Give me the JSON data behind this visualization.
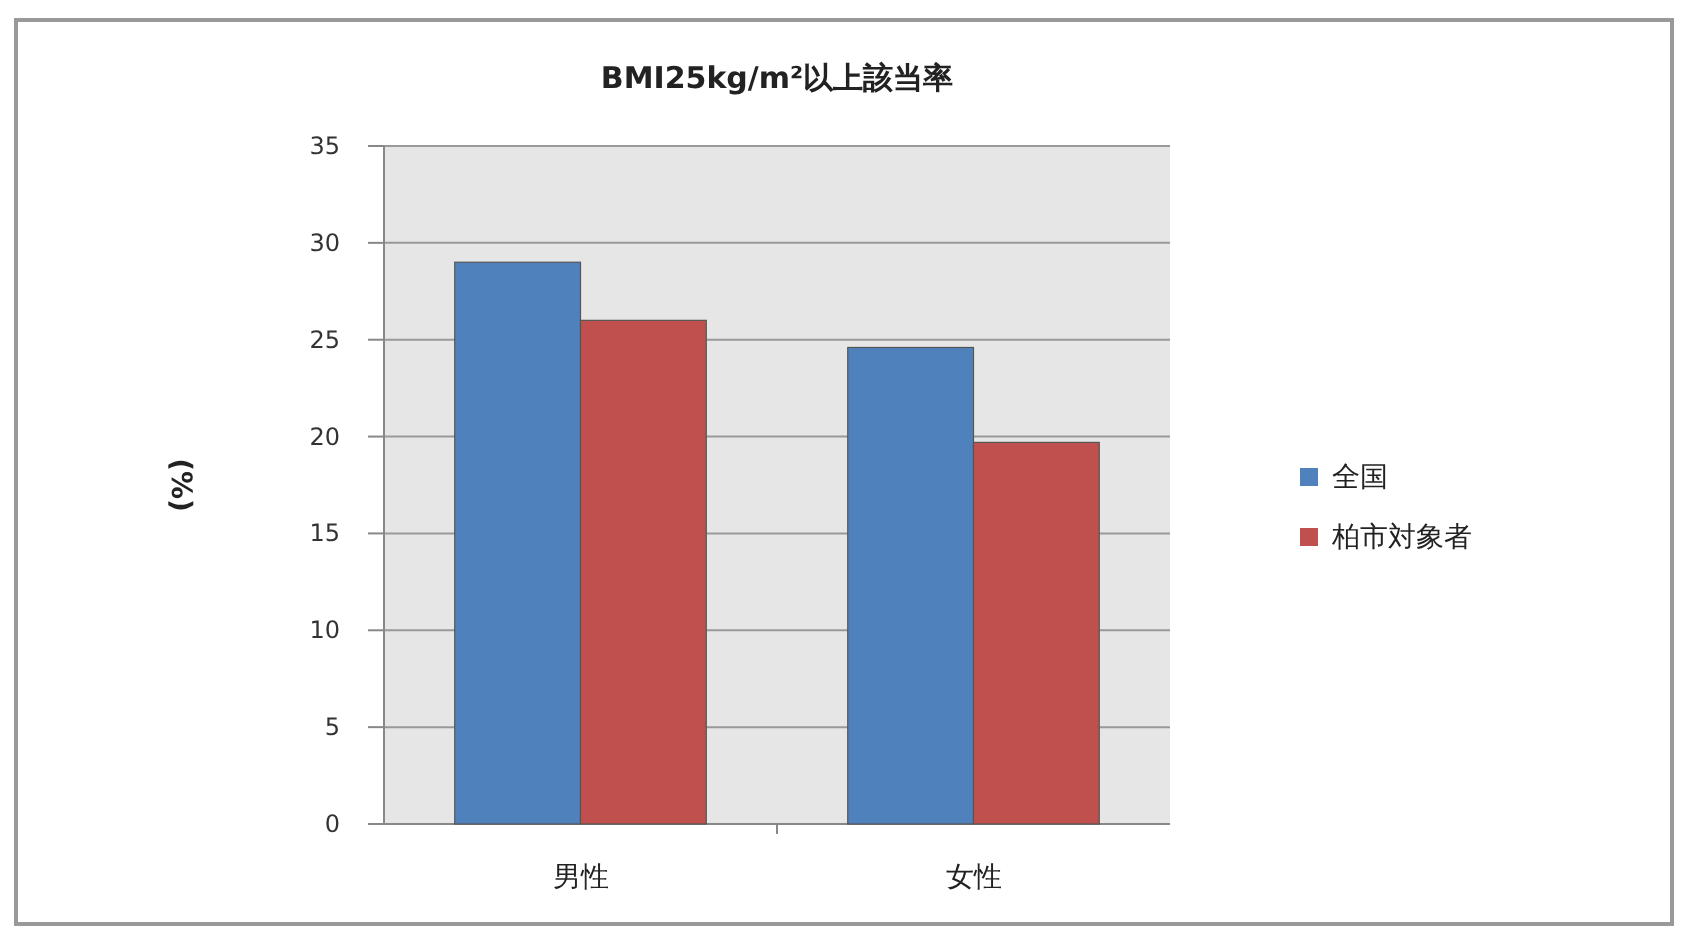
{
  "chart_data": {
    "type": "bar",
    "title": "BMI25kg/m²以上該当率",
    "ylabel": "(%)",
    "categories": [
      "男性",
      "女性"
    ],
    "series": [
      {
        "name": "全国",
        "color": "#4f81bd",
        "values": [
          29.0,
          24.6
        ]
      },
      {
        "name": "柏市対象者",
        "color": "#c0504d",
        "values": [
          26.0,
          19.7
        ]
      }
    ],
    "ylim": [
      0,
      35
    ],
    "yticks": [
      0,
      5,
      10,
      15,
      20,
      25,
      30,
      35
    ],
    "grid": "y",
    "legend": "right"
  }
}
